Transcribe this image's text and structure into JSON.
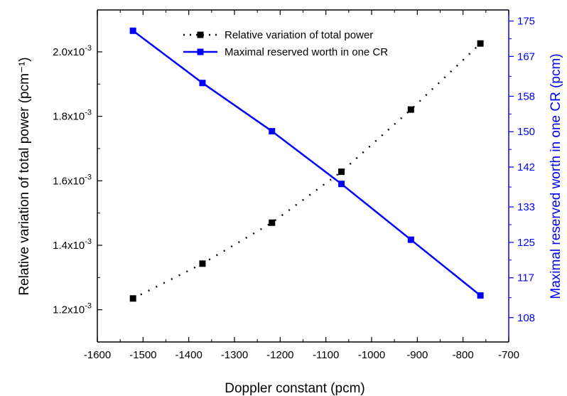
{
  "chart_data": {
    "type": "line",
    "xlabel": "Doppler constant (pcm)",
    "ylabel_left": "Relative variation of total power (pcm⁻¹)",
    "ylabel_right": "Maximal reserved worth in one CR (pcm)",
    "xlim": [
      -1600,
      -700
    ],
    "ylim_left": [
      0.0011,
      0.00213
    ],
    "ylim_right": [
      102.5,
      177.5
    ],
    "xticks": [
      -1600,
      -1500,
      -1400,
      -1300,
      -1200,
      -1100,
      -1000,
      -900,
      -800,
      -700
    ],
    "yticks_left": [
      {
        "value": 0.0012,
        "mantissa": "1.2x10",
        "exp": "-3"
      },
      {
        "value": 0.0014,
        "mantissa": "1.4x10",
        "exp": "-3"
      },
      {
        "value": 0.0016,
        "mantissa": "1.6x10",
        "exp": "-3"
      },
      {
        "value": 0.0018,
        "mantissa": "1.8x10",
        "exp": "-3"
      },
      {
        "value": 0.002,
        "mantissa": "2.0x10",
        "exp": "-3"
      }
    ],
    "yticks_right": [
      108,
      117,
      125,
      133,
      142,
      150,
      158,
      167,
      175
    ],
    "grid": false,
    "legend_position": "top-center",
    "series": [
      {
        "name": "Relative variation of total power",
        "axis": "left",
        "color": "#000000",
        "line_style": "dotted",
        "marker": "square",
        "x": [
          -1522,
          -1370,
          -1218,
          -1066,
          -914,
          -762
        ],
        "y": [
          0.001235,
          0.001343,
          0.00147,
          0.001628,
          0.001821,
          0.002026
        ]
      },
      {
        "name": "Maximal reserved worth in one CR",
        "axis": "right",
        "color": "#0000ff",
        "line_style": "solid",
        "marker": "square",
        "x": [
          -1522,
          -1370,
          -1218,
          -1066,
          -914,
          -762
        ],
        "y": [
          172.8,
          161.0,
          150.1,
          138.2,
          125.6,
          113.0
        ]
      }
    ]
  }
}
